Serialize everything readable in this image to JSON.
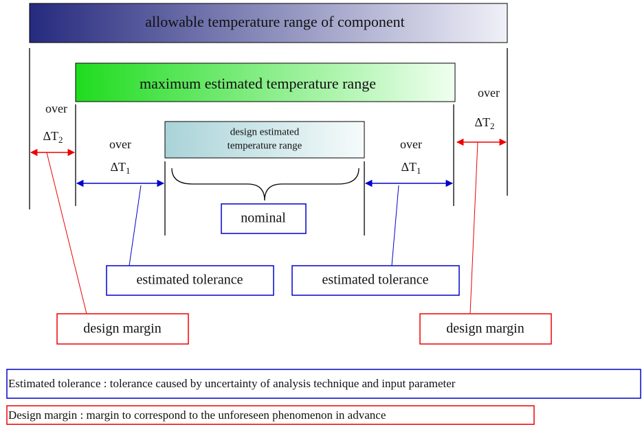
{
  "top_bar": "allowable temperature range of component",
  "max_bar": "maximum estimated temperature range",
  "design_box": {
    "line1": "design estimated",
    "line2": "temperature range"
  },
  "left_outer": {
    "over": "over",
    "delta": "ΔT",
    "sub": "2"
  },
  "left_inner": {
    "over": "over",
    "delta": "ΔT",
    "sub": "1"
  },
  "right_inner": {
    "over": "over",
    "delta": "ΔT",
    "sub": "1"
  },
  "right_outer": {
    "over": "over",
    "delta": "ΔT",
    "sub": "2"
  },
  "nominal": "nominal",
  "tolerance_left": "estimated tolerance",
  "tolerance_right": "estimated tolerance",
  "margin_left": "design margin",
  "margin_right": "design margin",
  "notes": [
    "Estimated tolerance : tolerance caused by uncertainty of analysis technique and input parameter",
    "Design margin : margin to correspond to the unforeseen phenomenon in advance"
  ]
}
